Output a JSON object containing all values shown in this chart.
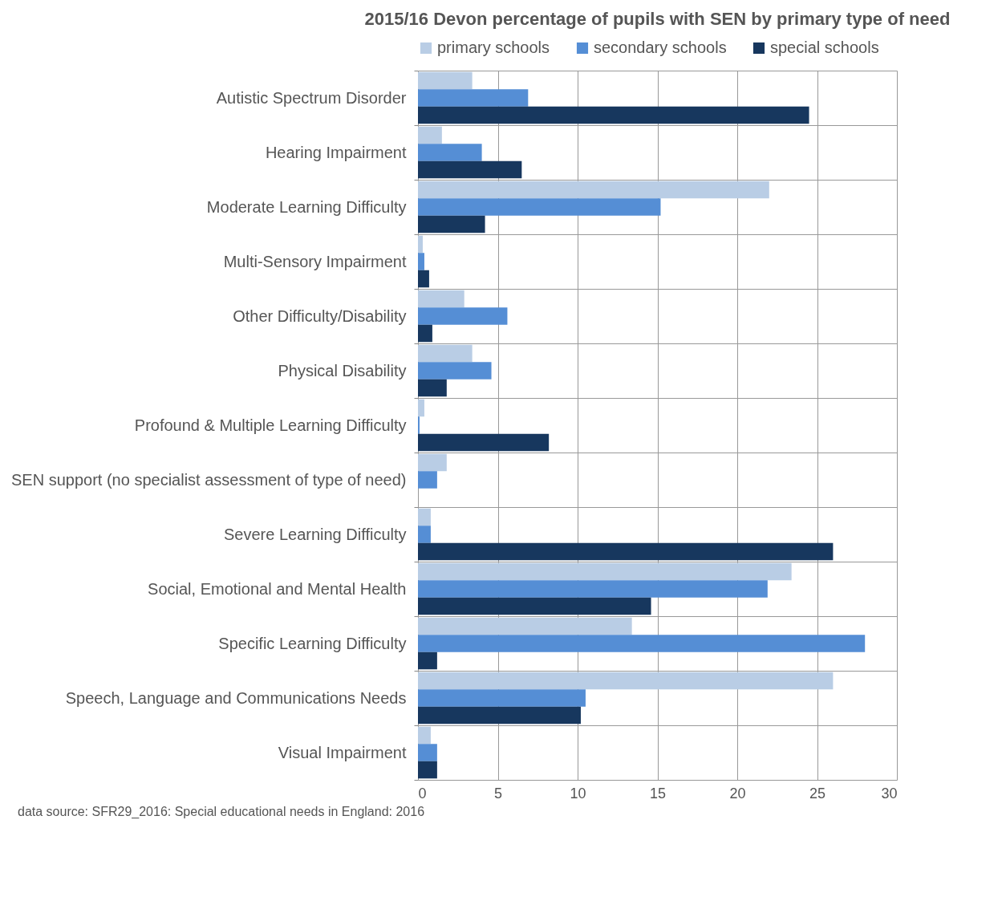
{
  "chart_data": {
    "type": "bar",
    "orientation": "horizontal",
    "title": "2015/16 Devon percentage of pupils with SEN by primary type of need",
    "categories": [
      "Autistic Spectrum Disorder",
      "Hearing Impairment",
      "Moderate Learning Difficulty",
      "Multi-Sensory Impairment",
      "Other Difficulty/Disability",
      "Physical Disability",
      "Profound & Multiple Learning Difficulty",
      "SEN support (no specialist assessment of type of need)",
      "Severe Learning Difficulty",
      "Social, Emotional and Mental Health",
      "Specific Learning Difficulty",
      "Speech, Language and Communications Needs",
      "Visual Impairment"
    ],
    "series": [
      {
        "name": "primary schools",
        "color": "#b9cde5",
        "values": [
          3.4,
          1.5,
          22.0,
          0.3,
          2.9,
          3.4,
          0.4,
          1.8,
          0.8,
          23.4,
          13.4,
          26.0,
          0.8
        ]
      },
      {
        "name": "secondary schools",
        "color": "#558ed5",
        "values": [
          6.9,
          4.0,
          15.2,
          0.4,
          5.6,
          4.6,
          0.1,
          1.2,
          0.8,
          21.9,
          28.0,
          10.5,
          1.2
        ]
      },
      {
        "name": "special schools",
        "color": "#17375e",
        "values": [
          24.5,
          6.5,
          4.2,
          0.7,
          0.9,
          1.8,
          8.2,
          null,
          26.0,
          14.6,
          1.2,
          10.2,
          1.2
        ]
      }
    ],
    "xlim": [
      0,
      30
    ],
    "xticks": [
      0,
      5,
      10,
      15,
      20,
      25,
      30
    ],
    "grid": "x",
    "legend": "top",
    "annotations": [
      "data source: SFR29_2016: Special educational needs in England:  2016"
    ]
  }
}
